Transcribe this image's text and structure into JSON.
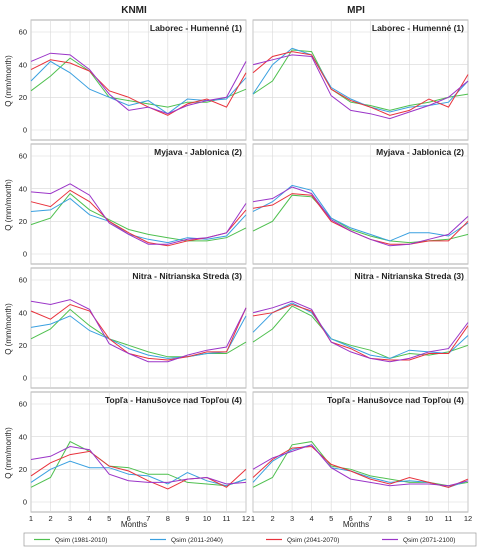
{
  "figure": {
    "columns": [
      "KNMI",
      "MPI"
    ],
    "ylabel": "Q (mm/month)",
    "xlabel": "Months"
  },
  "legend": [
    {
      "name": "Qsim (1981-2010)",
      "color": "#4fc04f"
    },
    {
      "name": "Qsim (2011-2040)",
      "color": "#3aa0e0"
    },
    {
      "name": "Qsim (2041-2070)",
      "color": "#e8323c"
    },
    {
      "name": "Qsim (2071-2100)",
      "color": "#9b35c8"
    }
  ],
  "chart_data": [
    {
      "type": "line",
      "column": "KNMI",
      "title": "Laborec - Humenné (1)",
      "x": [
        1,
        2,
        3,
        4,
        5,
        6,
        7,
        8,
        9,
        10,
        11,
        12
      ],
      "ylim": [
        0,
        60
      ],
      "yticks": [
        0,
        20,
        40,
        60
      ],
      "series": [
        {
          "name": "Qsim (1981-2010)",
          "values": [
            24,
            33,
            44,
            36,
            20,
            18,
            16,
            14,
            17,
            17,
            20,
            25
          ]
        },
        {
          "name": "Qsim (2011-2040)",
          "values": [
            30,
            42,
            35,
            25,
            20,
            15,
            18,
            10,
            19,
            18,
            19,
            32
          ]
        },
        {
          "name": "Qsim (2041-2070)",
          "values": [
            37,
            43,
            41,
            36,
            24,
            20,
            14,
            9,
            16,
            19,
            14,
            35
          ]
        },
        {
          "name": "Qsim (2071-2100)",
          "values": [
            42,
            47,
            46,
            37,
            22,
            12,
            14,
            10,
            15,
            18,
            20,
            42
          ]
        }
      ]
    },
    {
      "type": "line",
      "column": "MPI",
      "title": "Laborec - Humenné (1)",
      "x": [
        1,
        2,
        3,
        4,
        5,
        6,
        7,
        8,
        9,
        10,
        11,
        12
      ],
      "ylim": [
        0,
        60
      ],
      "yticks": [
        0,
        20,
        40,
        60
      ],
      "series": [
        {
          "name": "Qsim (1981-2010)",
          "values": [
            22,
            30,
            49,
            48,
            25,
            17,
            15,
            12,
            15,
            17,
            20,
            22
          ]
        },
        {
          "name": "Qsim (2011-2040)",
          "values": [
            22,
            40,
            50,
            46,
            26,
            19,
            14,
            11,
            14,
            15,
            17,
            30
          ]
        },
        {
          "name": "Qsim (2041-2070)",
          "values": [
            35,
            45,
            48,
            46,
            25,
            18,
            14,
            9,
            12,
            19,
            14,
            34
          ]
        },
        {
          "name": "Qsim (2071-2100)",
          "values": [
            40,
            43,
            46,
            45,
            21,
            12,
            10,
            7,
            11,
            15,
            20,
            30
          ]
        }
      ]
    },
    {
      "type": "line",
      "column": "KNMI",
      "title": "Myjava - Jablonica  (2)",
      "x": [
        1,
        2,
        3,
        4,
        5,
        6,
        7,
        8,
        9,
        10,
        11,
        12
      ],
      "ylim": [
        0,
        60
      ],
      "yticks": [
        0,
        20,
        40,
        60
      ],
      "series": [
        {
          "name": "Qsim (1981-2010)",
          "values": [
            18,
            22,
            37,
            27,
            21,
            15,
            12,
            10,
            8,
            8,
            10,
            16
          ]
        },
        {
          "name": "Qsim (2011-2040)",
          "values": [
            26,
            27,
            34,
            24,
            20,
            12,
            9,
            7,
            10,
            9,
            11,
            24
          ]
        },
        {
          "name": "Qsim (2041-2070)",
          "values": [
            32,
            29,
            39,
            32,
            20,
            13,
            7,
            5,
            8,
            10,
            13,
            27
          ]
        },
        {
          "name": "Qsim (2071-2100)",
          "values": [
            38,
            37,
            43,
            36,
            19,
            12,
            6,
            6,
            9,
            10,
            13,
            31
          ]
        }
      ]
    },
    {
      "type": "line",
      "column": "MPI",
      "title": "Myjava - Jablonica  (2)",
      "x": [
        1,
        2,
        3,
        4,
        5,
        6,
        7,
        8,
        9,
        10,
        11,
        12
      ],
      "ylim": [
        0,
        60
      ],
      "yticks": [
        0,
        20,
        40,
        60
      ],
      "series": [
        {
          "name": "Qsim (1981-2010)",
          "values": [
            14,
            20,
            36,
            35,
            22,
            15,
            11,
            8,
            7,
            8,
            9,
            12
          ]
        },
        {
          "name": "Qsim (2011-2040)",
          "values": [
            26,
            32,
            42,
            39,
            22,
            16,
            12,
            8,
            13,
            13,
            11,
            19
          ]
        },
        {
          "name": "Qsim (2041-2070)",
          "values": [
            28,
            30,
            37,
            36,
            20,
            14,
            9,
            6,
            6,
            8,
            8,
            20
          ]
        },
        {
          "name": "Qsim (2071-2100)",
          "values": [
            32,
            34,
            41,
            37,
            21,
            14,
            9,
            5,
            6,
            9,
            12,
            23
          ]
        }
      ]
    },
    {
      "type": "line",
      "column": "KNMI",
      "title": "Nitra - Nitrianska Streda  (3)",
      "x": [
        1,
        2,
        3,
        4,
        5,
        6,
        7,
        8,
        9,
        10,
        11,
        12
      ],
      "ylim": [
        0,
        60
      ],
      "yticks": [
        0,
        20,
        40,
        60
      ],
      "series": [
        {
          "name": "Qsim (1981-2010)",
          "values": [
            24,
            30,
            42,
            32,
            24,
            20,
            16,
            13,
            13,
            15,
            15,
            22
          ]
        },
        {
          "name": "Qsim (2011-2040)",
          "values": [
            31,
            33,
            38,
            29,
            24,
            18,
            14,
            12,
            13,
            15,
            16,
            38
          ]
        },
        {
          "name": "Qsim (2041-2070)",
          "values": [
            41,
            36,
            45,
            41,
            24,
            15,
            12,
            11,
            13,
            16,
            16,
            43
          ]
        },
        {
          "name": "Qsim (2071-2100)",
          "values": [
            47,
            45,
            48,
            42,
            21,
            15,
            10,
            10,
            14,
            17,
            19,
            43
          ]
        }
      ]
    },
    {
      "type": "line",
      "column": "MPI",
      "title": "Nitra - Nitrianska Streda  (3)",
      "x": [
        1,
        2,
        3,
        4,
        5,
        6,
        7,
        8,
        9,
        10,
        11,
        12
      ],
      "ylim": [
        0,
        60
      ],
      "yticks": [
        0,
        20,
        40,
        60
      ],
      "series": [
        {
          "name": "Qsim (1981-2010)",
          "values": [
            22,
            30,
            44,
            38,
            24,
            20,
            17,
            12,
            15,
            14,
            16,
            20
          ]
        },
        {
          "name": "Qsim (2011-2040)",
          "values": [
            28,
            40,
            46,
            40,
            24,
            19,
            14,
            12,
            17,
            16,
            15,
            26
          ]
        },
        {
          "name": "Qsim (2041-2070)",
          "values": [
            38,
            40,
            45,
            41,
            22,
            18,
            12,
            11,
            11,
            15,
            15,
            32
          ]
        },
        {
          "name": "Qsim (2071-2100)",
          "values": [
            40,
            43,
            47,
            42,
            22,
            16,
            12,
            10,
            12,
            16,
            18,
            34
          ]
        }
      ]
    },
    {
      "type": "line",
      "column": "KNMI",
      "title": "Topľa - Hanušovce nad Topľou  (4)",
      "x": [
        1,
        2,
        3,
        4,
        5,
        6,
        7,
        8,
        9,
        10,
        11,
        12
      ],
      "ylim": [
        0,
        60
      ],
      "yticks": [
        0,
        20,
        40,
        60
      ],
      "series": [
        {
          "name": "Qsim (1981-2010)",
          "values": [
            9,
            15,
            37,
            31,
            22,
            21,
            17,
            17,
            12,
            11,
            10,
            14
          ]
        },
        {
          "name": "Qsim (2011-2040)",
          "values": [
            12,
            20,
            25,
            21,
            21,
            17,
            16,
            11,
            18,
            13,
            10,
            14
          ]
        },
        {
          "name": "Qsim (2041-2070)",
          "values": [
            16,
            24,
            29,
            31,
            22,
            19,
            13,
            8,
            14,
            15,
            9,
            20
          ]
        },
        {
          "name": "Qsim (2071-2100)",
          "values": [
            26,
            28,
            34,
            32,
            17,
            13,
            12,
            12,
            14,
            15,
            11,
            12
          ]
        }
      ]
    },
    {
      "type": "line",
      "column": "MPI",
      "title": "Topľa - Hanušovce nad Topľou  (4)",
      "x": [
        1,
        2,
        3,
        4,
        5,
        6,
        7,
        8,
        9,
        10,
        11,
        12
      ],
      "ylim": [
        0,
        60
      ],
      "yticks": [
        0,
        20,
        40,
        60
      ],
      "series": [
        {
          "name": "Qsim (1981-2010)",
          "values": [
            9,
            15,
            35,
            37,
            22,
            20,
            16,
            14,
            12,
            12,
            10,
            12
          ]
        },
        {
          "name": "Qsim (2011-2040)",
          "values": [
            12,
            25,
            32,
            35,
            21,
            19,
            15,
            12,
            13,
            12,
            9,
            13
          ]
        },
        {
          "name": "Qsim (2041-2070)",
          "values": [
            15,
            26,
            33,
            34,
            23,
            19,
            14,
            11,
            15,
            12,
            9,
            14
          ]
        },
        {
          "name": "Qsim (2071-2100)",
          "values": [
            20,
            27,
            31,
            35,
            21,
            14,
            12,
            10,
            11,
            11,
            10,
            13
          ]
        }
      ]
    }
  ]
}
